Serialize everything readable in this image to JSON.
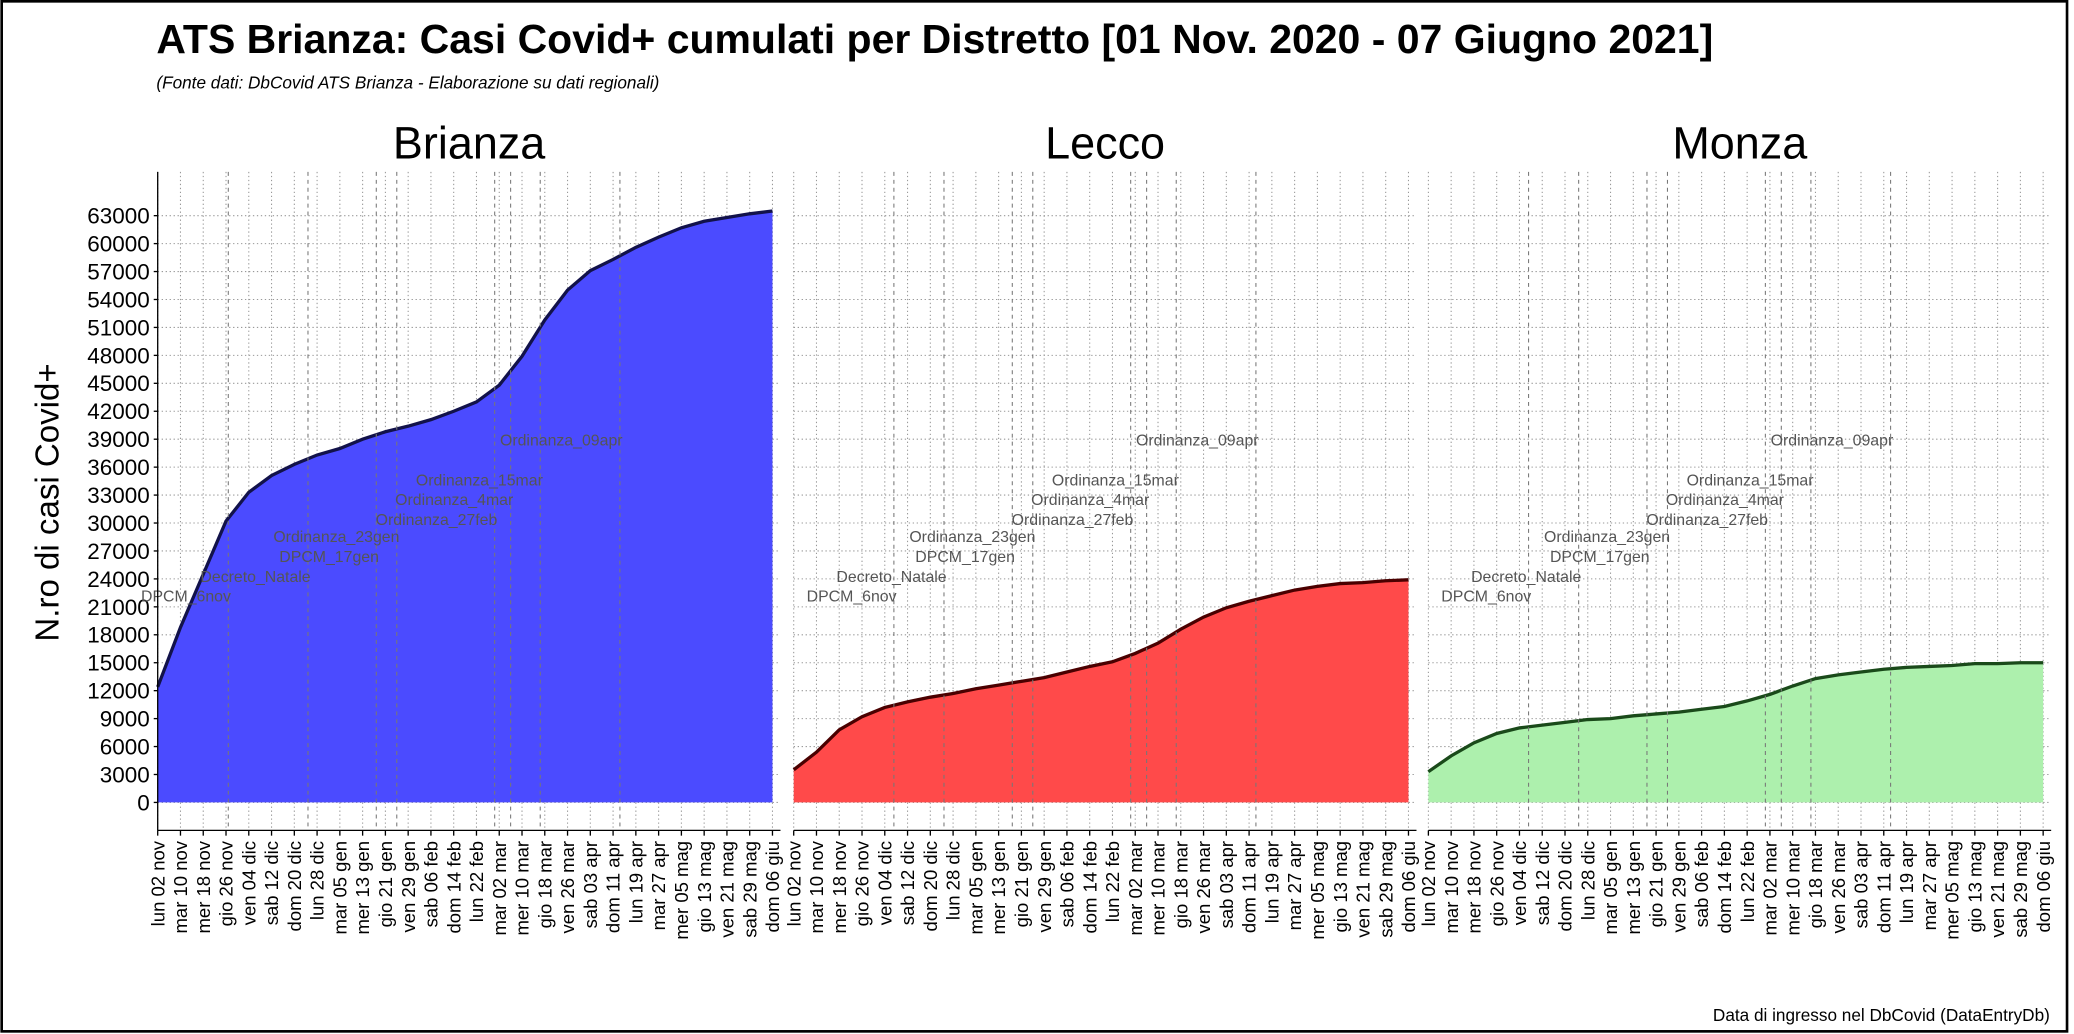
{
  "title": "ATS Brianza: Casi Covid+ cumulati per Distretto [01 Nov. 2020 - 07 Giugno 2021]",
  "subtitle": "(Fonte dati: DbCovid ATS Brianza - Elaborazione su dati regionali)",
  "footer": "Data di ingresso nel DbCovid (DataEntryDb)",
  "chart_data": [
    {
      "type": "area",
      "title": "Brianza",
      "ylabel": "N.ro di casi Covid+",
      "categories": [
        "lun 02 nov",
        "mar 10 nov",
        "mer 18 nov",
        "gio 26 nov",
        "ven 04 dic",
        "sab 12 dic",
        "dom 20 dic",
        "lun 28 dic",
        "mar 05 gen",
        "mer 13 gen",
        "gio 21 gen",
        "ven 29 gen",
        "sab 06 feb",
        "dom 14 feb",
        "lun 22 feb",
        "mar 02 mar",
        "mer 10 mar",
        "gio 18 mar",
        "ven 26 mar",
        "sab 03 apr",
        "dom 11 apr",
        "lun 19 apr",
        "mar 27 apr",
        "mer 05 mag",
        "gio 13 mag",
        "ven 21 mag",
        "sab 29 mag",
        "dom 06 giu"
      ],
      "values": [
        12400,
        18800,
        24500,
        30200,
        33300,
        35100,
        36300,
        37300,
        38000,
        39000,
        39800,
        40400,
        41100,
        42000,
        43000,
        44800,
        47900,
        51800,
        55000,
        57100,
        58300,
        59600,
        60700,
        61700,
        62400,
        62800,
        63200,
        63500
      ],
      "color": "#4b4bff",
      "edge_color": "#12124a",
      "ylim": [
        -3000,
        67700
      ],
      "yticks": [
        0,
        3000,
        6000,
        9000,
        12000,
        15000,
        18000,
        21000,
        24000,
        27000,
        30000,
        33000,
        36000,
        39000,
        42000,
        45000,
        48000,
        51000,
        54000,
        57000,
        60000,
        63000
      ],
      "grid": true,
      "annotations": [
        {
          "text": "DPCM_6nov",
          "x": 3.1
        },
        {
          "text": "Decreto_Natale",
          "x": 6.6
        },
        {
          "text": "DPCM_17gen",
          "x": 9.6
        },
        {
          "text": "Ordinanza_23gen",
          "x": 10.5
        },
        {
          "text": "Ordinanza_27feb",
          "x": 14.8
        },
        {
          "text": "Ordinanza_4mar",
          "x": 15.5
        },
        {
          "text": "Ordinanza_15mar",
          "x": 16.8
        },
        {
          "text": "Ordinanza_09apr",
          "x": 20.3
        }
      ]
    },
    {
      "type": "area",
      "title": "Lecco",
      "categories": [
        "lun 02 nov",
        "mar 10 nov",
        "mer 18 nov",
        "gio 26 nov",
        "ven 04 dic",
        "sab 12 dic",
        "dom 20 dic",
        "lun 28 dic",
        "mar 05 gen",
        "mer 13 gen",
        "gio 21 gen",
        "ven 29 gen",
        "sab 06 feb",
        "dom 14 feb",
        "lun 22 feb",
        "mar 02 mar",
        "mer 10 mar",
        "gio 18 mar",
        "ven 26 mar",
        "sab 03 apr",
        "dom 11 apr",
        "lun 19 apr",
        "mar 27 apr",
        "mer 05 mag",
        "gio 13 mag",
        "ven 21 mag",
        "sab 29 mag",
        "dom 06 giu"
      ],
      "values": [
        3500,
        5400,
        7800,
        9200,
        10200,
        10800,
        11300,
        11700,
        12200,
        12600,
        13000,
        13400,
        14000,
        14600,
        15100,
        16000,
        17100,
        18600,
        19900,
        20900,
        21600,
        22200,
        22800,
        23200,
        23500,
        23600,
        23800,
        23900
      ],
      "color": "#ff4a4a",
      "edge_color": "#4a0000",
      "ylim": [
        -3000,
        67700
      ],
      "yticks": [
        0,
        3000,
        6000,
        9000,
        12000,
        15000,
        18000,
        21000,
        24000,
        27000,
        30000,
        33000,
        36000,
        39000,
        42000,
        45000,
        48000,
        51000,
        54000,
        57000,
        60000,
        63000
      ],
      "grid": true,
      "annotations": [
        {
          "text": "DPCM_6nov",
          "x": 4.4
        },
        {
          "text": "Decreto_Natale",
          "x": 6.6
        },
        {
          "text": "DPCM_17gen",
          "x": 9.6
        },
        {
          "text": "Ordinanza_23gen",
          "x": 10.5
        },
        {
          "text": "Ordinanza_27feb",
          "x": 14.8
        },
        {
          "text": "Ordinanza_4mar",
          "x": 15.5
        },
        {
          "text": "Ordinanza_15mar",
          "x": 16.8
        },
        {
          "text": "Ordinanza_09apr",
          "x": 20.3
        }
      ]
    },
    {
      "type": "area",
      "title": "Monza",
      "categories": [
        "lun 02 nov",
        "mar 10 nov",
        "mer 18 nov",
        "gio 26 nov",
        "ven 04 dic",
        "sab 12 dic",
        "dom 20 dic",
        "lun 28 dic",
        "mar 05 gen",
        "mer 13 gen",
        "gio 21 gen",
        "ven 29 gen",
        "sab 06 feb",
        "dom 14 feb",
        "lun 22 feb",
        "mar 02 mar",
        "mer 10 mar",
        "gio 18 mar",
        "ven 26 mar",
        "sab 03 apr",
        "dom 11 apr",
        "lun 19 apr",
        "mar 27 apr",
        "mer 05 mag",
        "gio 13 mag",
        "ven 21 mag",
        "sab 29 mag",
        "dom 06 giu"
      ],
      "values": [
        3300,
        5000,
        6400,
        7400,
        8000,
        8300,
        8600,
        8900,
        9000,
        9300,
        9500,
        9700,
        10000,
        10300,
        10900,
        11600,
        12500,
        13300,
        13700,
        14000,
        14300,
        14500,
        14600,
        14700,
        14900,
        14900,
        15000,
        15000
      ],
      "color": "#adf0ad",
      "edge_color": "#1a4a1a",
      "ylim": [
        -3000,
        67700
      ],
      "yticks": [
        0,
        3000,
        6000,
        9000,
        12000,
        15000,
        18000,
        21000,
        24000,
        27000,
        30000,
        33000,
        36000,
        39000,
        42000,
        45000,
        48000,
        51000,
        54000,
        57000,
        60000,
        63000
      ],
      "grid": true,
      "annotations": [
        {
          "text": "DPCM_6nov",
          "x": 4.4
        },
        {
          "text": "Decreto_Natale",
          "x": 6.6
        },
        {
          "text": "DPCM_17gen",
          "x": 9.6
        },
        {
          "text": "Ordinanza_23gen",
          "x": 10.5
        },
        {
          "text": "Ordinanza_27feb",
          "x": 14.8
        },
        {
          "text": "Ordinanza_4mar",
          "x": 15.5
        },
        {
          "text": "Ordinanza_15mar",
          "x": 16.8
        },
        {
          "text": "Ordinanza_09apr",
          "x": 20.3
        }
      ]
    }
  ]
}
